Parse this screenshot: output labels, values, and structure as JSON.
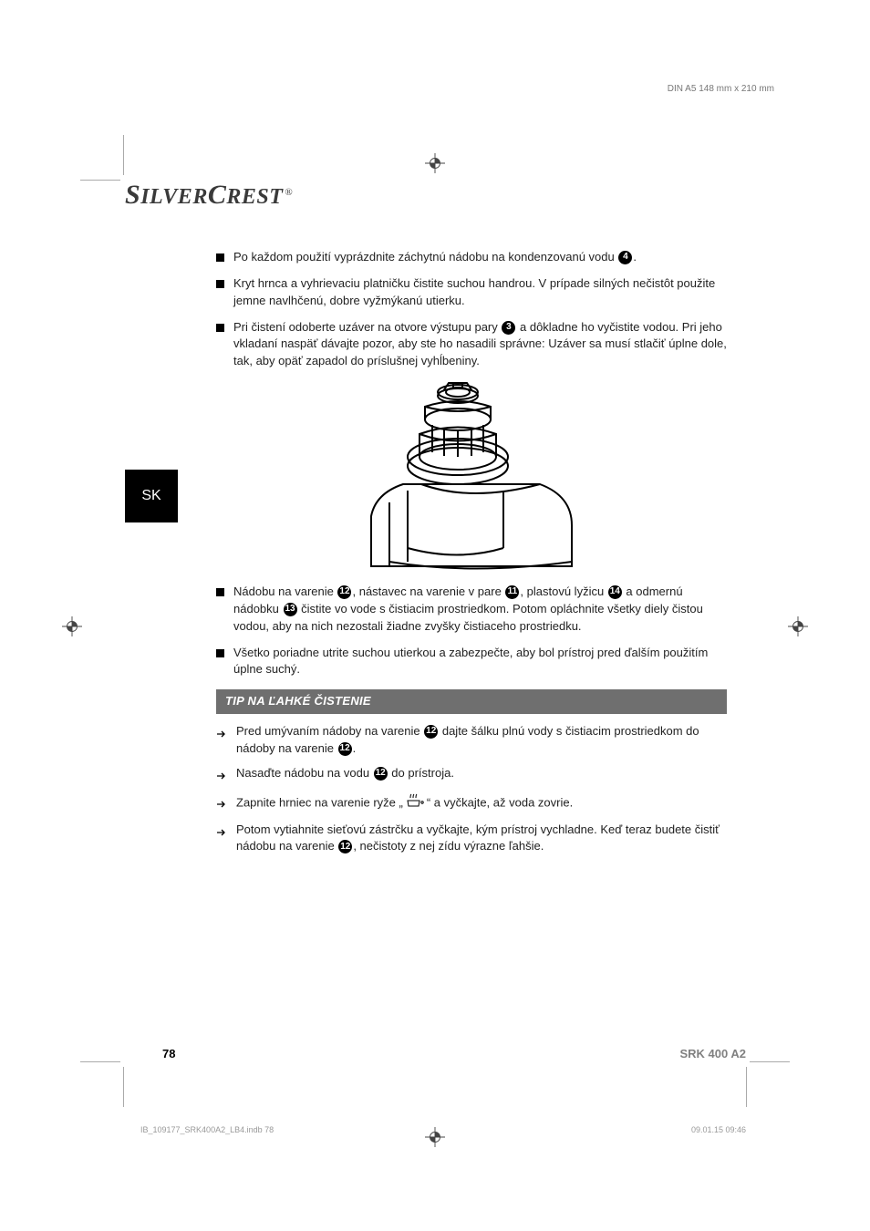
{
  "trim_note": "DIN A5 148 mm x 210 mm",
  "brand": {
    "part1": "S",
    "part2": "ILVER",
    "part3": "C",
    "part4": "REST",
    "reg": "®"
  },
  "lang_tab": "SK",
  "bullets_top": [
    {
      "pre": "Po každom použití vyprázdnite záchytnú nádobu na kondenzovanú vodu ",
      "num": "4",
      "post": "."
    },
    {
      "pre": "Kryt hrnca a vyhrievaciu platničku čistite suchou handrou. V prípade silných nečistôt použite jemne navlhčenú, dobre vyžmýkanú utierku.",
      "num": "",
      "post": ""
    },
    {
      "pre": "Pri čistení odoberte uzáver na otvore výstupu pary ",
      "num": "3",
      "post": " a dôkladne ho vyčistite vodou. Pri jeho vkladaní naspäť dávajte pozor, aby ste ho nasadili správne: Uzáver sa musí stlačiť úplne dole, tak, aby opäť zapadol do príslušnej vyhĺbeniny."
    }
  ],
  "bullets_mid": [
    {
      "segments": [
        {
          "t": "Nádobu na varenie "
        },
        {
          "n": "12"
        },
        {
          "t": ", nástavec na varenie v pare "
        },
        {
          "n": "11"
        },
        {
          "t": ", plastovú lyžicu "
        },
        {
          "n": "14"
        },
        {
          "t": " a odmernú nádobku "
        },
        {
          "n": "13"
        },
        {
          "t": " čistite vo vode s čistiacim prostriedkom. Potom opláchnite všetky diely čistou vodou, aby na nich nezostali žiadne zvyšky čistiaceho prostriedku."
        }
      ]
    },
    {
      "segments": [
        {
          "t": "Všetko poriadne utrite suchou utierkou a zabezpečte, aby bol prístroj pred ďalším použitím úplne suchý."
        }
      ]
    }
  ],
  "tip_title": "TIP NA ĽAHKÉ ČISTENIE",
  "tips": [
    {
      "segments": [
        {
          "t": "Pred umývaním nádoby na varenie "
        },
        {
          "n": "12"
        },
        {
          "t": " dajte šálku plnú vody s čistiacim prostriedkom do nádoby na varenie "
        },
        {
          "n": "12"
        },
        {
          "t": "."
        }
      ]
    },
    {
      "segments": [
        {
          "t": "Nasaďte nádobu na vodu "
        },
        {
          "n": "12"
        },
        {
          "t": " do prístroja."
        }
      ]
    },
    {
      "segments": [
        {
          "t": "Zapnite hrniec na varenie ryže „"
        },
        {
          "icon": true
        },
        {
          "t": "“ a vyčkajte, až voda zovrie."
        }
      ]
    },
    {
      "segments": [
        {
          "t": "Potom vytiahnite sieťovú zástrčku a vyčkajte, kým prístroj vychladne. Keď teraz budete čistiť nádobu na varenie "
        },
        {
          "n": "12"
        },
        {
          "t": ", nečistoty z nej zídu výrazne ľahšie."
        }
      ]
    }
  ],
  "footer": {
    "page_number": "78",
    "model": "SRK 400 A2"
  },
  "imprint": {
    "file": "IB_109177_SRK400A2_LB4.indb   78",
    "datetime": "09.01.15   09:46"
  },
  "colors": {
    "tip_bar_bg": "#6f6f6f",
    "text": "#222222",
    "model_color": "#808080"
  }
}
